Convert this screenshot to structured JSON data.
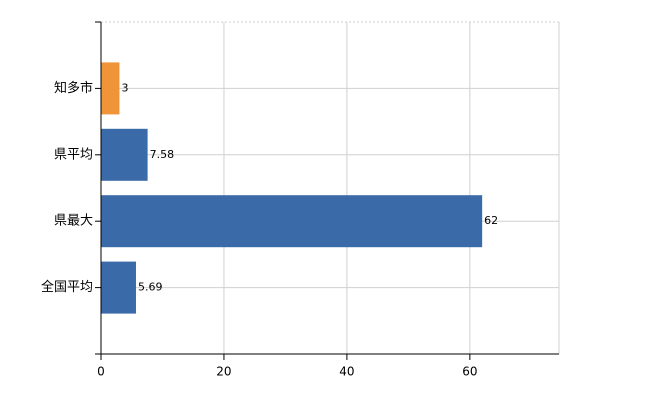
{
  "chart_data": {
    "type": "bar",
    "orientation": "horizontal",
    "categories": [
      "知多市",
      "県平均",
      "県最大",
      "全国平均"
    ],
    "values": [
      3,
      7.58,
      62,
      5.69
    ],
    "colors": [
      "#f0943a",
      "#3a6aa8",
      "#3a6aa8",
      "#3a6aa8"
    ],
    "xlim": [
      0,
      74.5
    ],
    "xticks": [
      0,
      20,
      40,
      60
    ],
    "grid": true
  }
}
